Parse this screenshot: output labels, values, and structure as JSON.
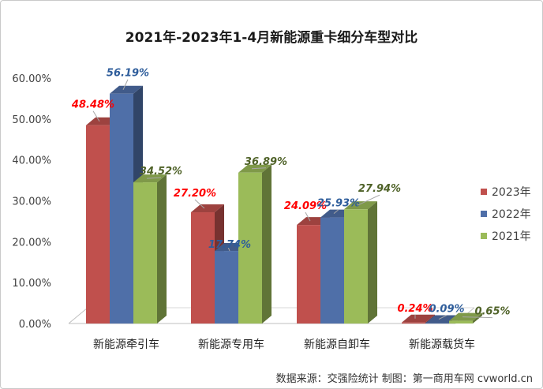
{
  "chart_data": {
    "type": "bar",
    "title": "2021年-2023年1-4月新能源重卡细分车型对比",
    "categories": [
      "新能源牵引车",
      "新能源专用车",
      "新能源自卸车",
      "新能源载货车"
    ],
    "series": [
      {
        "name": "2023年",
        "values": [
          48.48,
          27.2,
          24.09,
          0.24
        ],
        "labels": [
          "48.48%",
          "27.20%",
          "24.09%",
          "0.24%"
        ],
        "color": "#c0504d",
        "label_color": "#ff0000"
      },
      {
        "name": "2022年",
        "values": [
          56.19,
          17.74,
          25.93,
          0.09
        ],
        "labels": [
          "56.19%",
          "17.74%",
          "25.93%",
          "0.09%"
        ],
        "color": "#4f6fa8",
        "label_color": "#2e5d9b"
      },
      {
        "name": "2021年",
        "values": [
          34.52,
          36.89,
          27.94,
          0.65
        ],
        "labels": [
          "34.52%",
          "36.89%",
          "27.94%",
          "0.65%"
        ],
        "color": "#9bbb59",
        "label_color": "#4f6228"
      }
    ],
    "ylim": [
      0,
      60
    ],
    "yticks": [
      "0.00%",
      "10.00%",
      "20.00%",
      "30.00%",
      "40.00%",
      "50.00%",
      "60.00%"
    ],
    "ytick_values": [
      0,
      10,
      20,
      30,
      40,
      50,
      60
    ],
    "legend_position": "right",
    "grid": false
  },
  "footer": {
    "source_text": "数据来源：交强险统计  制图：第一商用车网 cvworld.cn"
  }
}
